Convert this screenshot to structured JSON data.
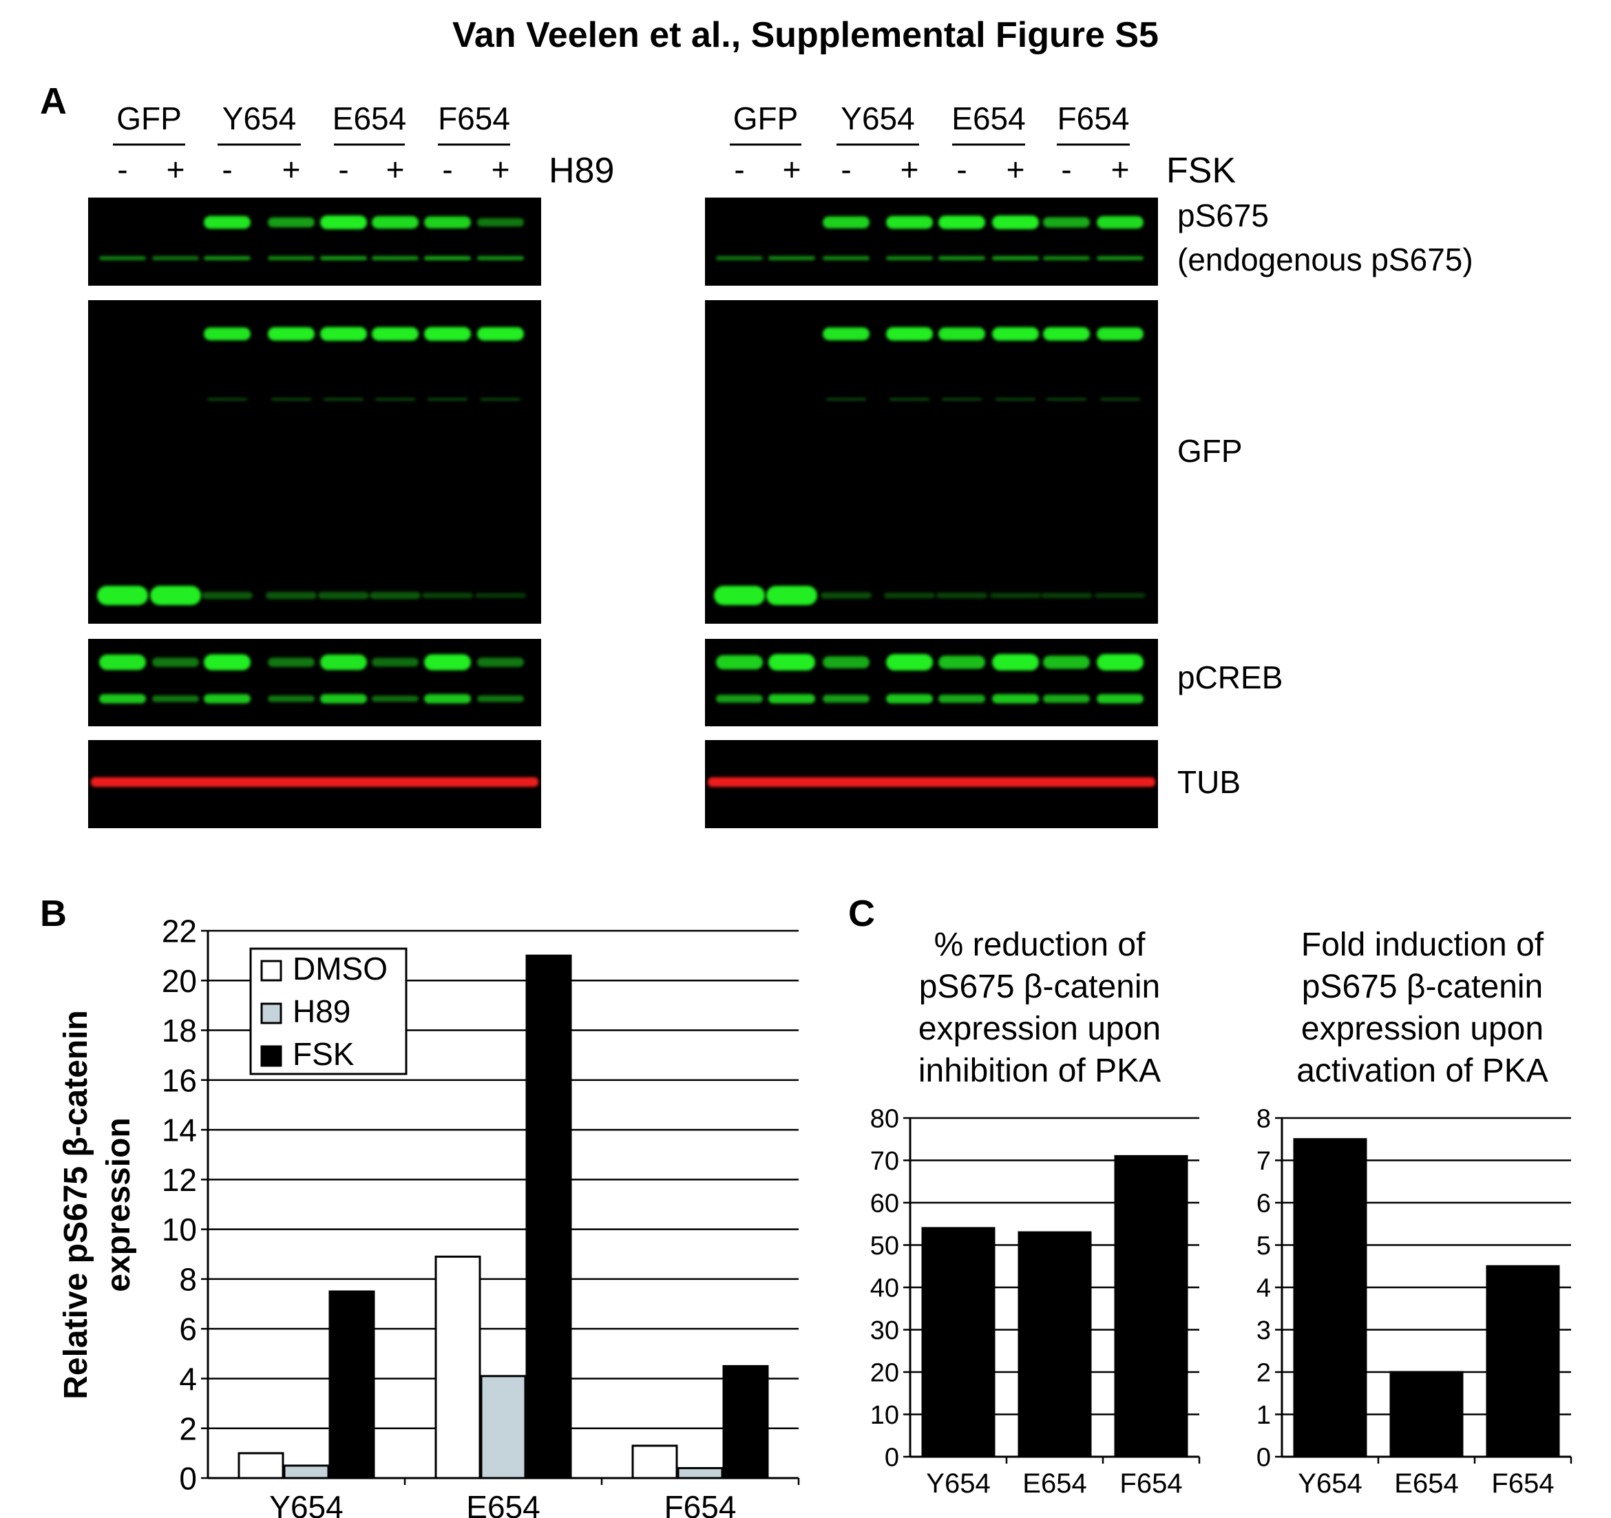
{
  "figure_title": "Van Veelen et al., Supplemental Figure S5",
  "panel_labels": {
    "a": "A",
    "b": "B",
    "c": "C"
  },
  "colors": {
    "band_green": "#22ee22",
    "band_red": "#ee1f1f",
    "blot_bg": "#000000",
    "h89_bar": "#c5d3da",
    "dmso_bar": "#ffffff",
    "fsk_bar": "#000000"
  },
  "western_blots": {
    "left": {
      "groups": [
        "GFP",
        "Y654",
        "E654",
        "F654"
      ],
      "lane_signs": [
        "-",
        "+",
        "-",
        "+",
        "-",
        "+",
        "-",
        "+"
      ],
      "treatment": "H89"
    },
    "right": {
      "groups": [
        "GFP",
        "Y654",
        "E654",
        "F654"
      ],
      "lane_signs": [
        "-",
        "+",
        "-",
        "+",
        "-",
        "+",
        "-",
        "+"
      ],
      "treatment": "FSK"
    },
    "row_labels": {
      "ps675": "pS675",
      "endogenous": "(endogenous pS675)",
      "gfp": "GFP",
      "pcreb": "pCREB",
      "tub": "TUB"
    }
  },
  "chart_data": [
    {
      "id": "B",
      "type": "bar",
      "categories": [
        "Y654",
        "E654",
        "F654"
      ],
      "series": [
        {
          "name": "DMSO",
          "values": [
            1.0,
            8.9,
            1.3
          ]
        },
        {
          "name": "H89",
          "values": [
            0.5,
            4.1,
            0.4
          ]
        },
        {
          "name": "FSK",
          "values": [
            7.5,
            21.0,
            4.5
          ]
        }
      ],
      "ylabel_line1": "Relative pS675 β-catenin",
      "ylabel_line2": "expression",
      "ylim": [
        0,
        22
      ],
      "yticks": [
        0,
        2,
        4,
        6,
        8,
        10,
        12,
        14,
        16,
        18,
        20,
        22
      ],
      "grid": true,
      "legend": "top-left"
    },
    {
      "id": "C1",
      "type": "bar",
      "title_lines": [
        "% reduction of",
        "pS675 β-catenin",
        "expression upon",
        "inhibition of PKA"
      ],
      "categories": [
        "Y654",
        "E654",
        "F654"
      ],
      "values": [
        54,
        53,
        71
      ],
      "ylim": [
        0,
        80
      ],
      "yticks": [
        0,
        10,
        20,
        30,
        40,
        50,
        60,
        70,
        80
      ],
      "grid": true
    },
    {
      "id": "C2",
      "type": "bar",
      "title_lines": [
        "Fold induction of",
        "pS675 β-catenin",
        "expression upon",
        "activation of PKA"
      ],
      "categories": [
        "Y654",
        "E654",
        "F654"
      ],
      "values": [
        7.5,
        2.0,
        4.5
      ],
      "ylim": [
        0,
        8
      ],
      "yticks": [
        0,
        1,
        2,
        3,
        4,
        5,
        6,
        7,
        8
      ],
      "grid": true
    }
  ]
}
